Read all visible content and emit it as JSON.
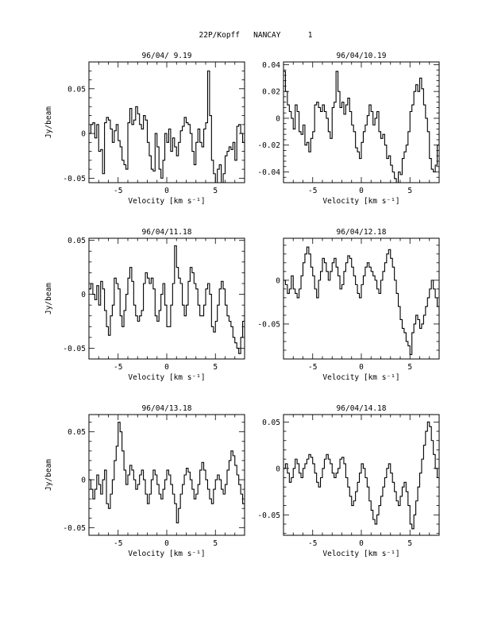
{
  "header": "22P/Kopff   NANCAY      1",
  "chart_data": [
    {
      "type": "line",
      "title": "96/04/ 9.19",
      "xlabel": "Velocity [km s⁻¹]",
      "ylabel": "Jy/beam",
      "xlim": [
        -8,
        8
      ],
      "ylim": [
        -0.055,
        0.08
      ],
      "xticks": [
        -5,
        0,
        5
      ],
      "yticks": [
        -0.05,
        0,
        0.05
      ],
      "ytick_labels": [
        "-0.05",
        "0",
        "0.05"
      ],
      "x_step": 0.2,
      "values": [
        0.0,
        0.01,
        0.012,
        -0.005,
        0.01,
        -0.02,
        -0.018,
        -0.045,
        0.012,
        0.018,
        0.015,
        0.005,
        -0.01,
        0.003,
        0.01,
        -0.008,
        -0.015,
        -0.03,
        -0.035,
        -0.04,
        0.012,
        0.028,
        0.01,
        0.015,
        0.03,
        0.022,
        0.01,
        0.005,
        0.02,
        0.015,
        -0.01,
        -0.025,
        -0.04,
        -0.042,
        0.0,
        -0.015,
        -0.04,
        -0.05,
        -0.03,
        0.0,
        -0.01,
        0.005,
        -0.02,
        -0.005,
        -0.015,
        -0.025,
        -0.01,
        0.003,
        0.008,
        0.018,
        0.012,
        0.01,
        0.0,
        -0.02,
        -0.035,
        -0.01,
        0.005,
        -0.01,
        -0.015,
        0.005,
        0.012,
        0.07,
        0.02,
        -0.03,
        -0.045,
        -0.058,
        -0.04,
        -0.035,
        -0.055,
        -0.045,
        -0.025,
        -0.02,
        -0.015,
        -0.018,
        -0.01,
        -0.03,
        0.008,
        0.01,
        0.0,
        -0.01,
        -0.005,
        -0.025,
        -0.02,
        0.0,
        0.012,
        0.005,
        0.0,
        -0.01,
        -0.015,
        -0.03,
        -0.03,
        -0.02,
        -0.01,
        -0.015,
        0.005,
        0.01,
        0.015,
        0.01,
        0.005,
        0.025,
        0.018,
        0.008,
        0.012,
        0.02,
        0.01,
        0.005,
        -0.01,
        0.0,
        0.005,
        0.02,
        0.015,
        -0.02,
        -0.025,
        -0.015,
        -0.005,
        0.015,
        -0.01,
        0.003,
        0.005,
        0.012,
        -0.01,
        0.005,
        0.012,
        0.022,
        0.015,
        0.008,
        0.032,
        0.025,
        0.012,
        0.018,
        0.01,
        0.005,
        0.0,
        -0.01,
        -0.015,
        0.008,
        0.01,
        0.0,
        0.005,
        0.012,
        0.02,
        0.003,
        -0.015,
        -0.01,
        0.005,
        0.012,
        0.006,
        0.01,
        -0.01,
        0.015,
        0.018,
        0.012,
        0.008,
        0.0,
        0.003,
        0.01
      ]
    },
    {
      "type": "line",
      "title": "96/04/10.19",
      "xlabel": "Velocity [km s⁻¹]",
      "ylabel": "",
      "xlim": [
        -8,
        8
      ],
      "ylim": [
        -0.048,
        0.042
      ],
      "xticks": [
        -5,
        0,
        5
      ],
      "yticks": [
        -0.04,
        -0.02,
        0,
        0.02,
        0.04
      ],
      "ytick_labels": [
        "-0.04",
        "-0.02",
        "0",
        "0.02",
        "0.04"
      ],
      "x_step": 0.2,
      "values": [
        0.035,
        0.02,
        0.01,
        0.005,
        0.0,
        -0.008,
        0.01,
        0.005,
        -0.01,
        -0.012,
        -0.005,
        -0.02,
        -0.018,
        -0.025,
        -0.015,
        -0.01,
        0.01,
        0.012,
        0.008,
        0.005,
        0.01,
        0.005,
        0.0,
        -0.01,
        -0.015,
        0.008,
        0.012,
        0.035,
        0.02,
        0.008,
        0.012,
        0.003,
        0.01,
        0.015,
        0.005,
        -0.005,
        -0.01,
        -0.022,
        -0.025,
        -0.03,
        -0.018,
        -0.01,
        -0.005,
        0.002,
        0.01,
        0.005,
        -0.005,
        0.0,
        0.005,
        -0.01,
        -0.015,
        -0.012,
        -0.02,
        -0.03,
        -0.028,
        -0.035,
        -0.04,
        -0.045,
        -0.05,
        -0.04,
        -0.042,
        -0.03,
        -0.025,
        -0.02,
        -0.01,
        0.005,
        0.01,
        0.02,
        0.025,
        0.02,
        0.03,
        0.022,
        0.01,
        0.0,
        -0.01,
        -0.03,
        -0.038,
        -0.04,
        -0.035,
        -0.02,
        -0.01,
        0.005,
        0.0,
        -0.008,
        -0.015,
        -0.02,
        -0.025,
        -0.015,
        -0.008,
        -0.012,
        -0.02,
        -0.01,
        0.0,
        0.005,
        0.01,
        0.02,
        0.025,
        0.018,
        0.01,
        0.0,
        -0.005,
        -0.01,
        -0.02,
        -0.015,
        -0.005,
        0.005,
        0.012,
        0.02,
        0.025,
        0.028,
        0.02,
        0.01,
        0.0,
        -0.008,
        -0.012,
        -0.015,
        -0.01,
        -0.02,
        -0.025,
        -0.03,
        -0.025,
        -0.02,
        -0.01,
        0.005,
        0.015,
        0.02,
        0.025,
        0.01,
        0.0,
        -0.01,
        -0.005,
        0.005,
        0.012,
        0.018,
        0.02,
        0.012,
        0.005,
        0.0,
        -0.015,
        -0.025,
        -0.03,
        -0.02,
        -0.01,
        0.0,
        0.01,
        0.02,
        0.022,
        0.01,
        0.005,
        -0.01,
        -0.02,
        -0.008,
        0.0,
        0.005,
        0.0,
        -0.005,
        0.0,
        0.005,
        0.008
      ]
    },
    {
      "type": "line",
      "title": "96/04/11.18",
      "xlabel": "Velocity [km s⁻¹]",
      "ylabel": "Jy/beam",
      "xlim": [
        -8,
        8
      ],
      "ylim": [
        -0.06,
        0.052
      ],
      "xticks": [
        -5,
        0,
        5
      ],
      "yticks": [
        -0.05,
        0,
        0.05
      ],
      "ytick_labels": [
        "-0.05",
        "0",
        "0.05"
      ],
      "x_step": 0.2,
      "values": [
        0.005,
        0.01,
        0.0,
        -0.005,
        0.008,
        -0.01,
        0.012,
        0.005,
        -0.015,
        -0.03,
        -0.038,
        -0.02,
        -0.01,
        0.015,
        0.01,
        0.005,
        -0.02,
        -0.03,
        -0.015,
        0.0,
        0.015,
        0.025,
        0.012,
        -0.01,
        -0.02,
        -0.025,
        -0.02,
        -0.015,
        0.01,
        0.02,
        0.015,
        0.01,
        0.015,
        0.005,
        -0.02,
        -0.025,
        -0.015,
        0.0,
        0.01,
        -0.01,
        -0.03,
        -0.03,
        -0.01,
        0.01,
        0.045,
        0.025,
        0.015,
        0.01,
        -0.01,
        -0.02,
        -0.01,
        0.012,
        0.025,
        0.02,
        0.01,
        0.005,
        -0.01,
        -0.02,
        -0.02,
        -0.01,
        0.005,
        0.01,
        0.0,
        -0.03,
        -0.035,
        -0.025,
        -0.01,
        0.005,
        0.012,
        0.005,
        -0.01,
        -0.02,
        -0.025,
        -0.03,
        -0.04,
        -0.045,
        -0.05,
        -0.055,
        -0.04,
        -0.025,
        -0.015,
        -0.005,
        0.005,
        -0.01,
        -0.02,
        -0.03,
        0.0,
        0.015,
        0.01,
        0.005,
        -0.015,
        -0.02,
        -0.01,
        0.01,
        0.005,
        0.0,
        -0.005,
        -0.01,
        0.01,
        0.015,
        0.02,
        0.01,
        0.0,
        -0.01,
        -0.02,
        -0.03,
        -0.015,
        0.005,
        0.01,
        0.025,
        0.02,
        0.01,
        0.0,
        -0.005,
        -0.015,
        -0.025,
        -0.03,
        -0.02,
        -0.005,
        0.005,
        0.015,
        0.02,
        0.012,
        0.005,
        -0.01,
        -0.015,
        -0.005,
        0.005,
        0.015,
        0.022,
        0.018,
        0.008,
        0.0,
        -0.01,
        -0.015,
        -0.02,
        -0.01,
        0.0,
        0.01,
        0.015,
        0.02,
        0.01,
        0.005,
        -0.01,
        -0.02,
        -0.025,
        -0.015,
        -0.005,
        0.005,
        0.012,
        0.015,
        0.01,
        0.0,
        -0.02,
        -0.03,
        -0.045,
        -0.05,
        -0.048,
        -0.04,
        -0.02
      ]
    },
    {
      "type": "line",
      "title": "96/04/12.18",
      "xlabel": "Velocity [km s⁻¹]",
      "ylabel": "",
      "xlim": [
        -8,
        8
      ],
      "ylim": [
        -0.09,
        0.048
      ],
      "xticks": [
        -5,
        0,
        5
      ],
      "yticks": [
        -0.05,
        0
      ],
      "ytick_labels": [
        "-0.05",
        "0"
      ],
      "x_step": 0.2,
      "values": [
        0.0,
        -0.005,
        -0.015,
        -0.01,
        0.005,
        -0.01,
        -0.015,
        -0.02,
        -0.01,
        0.005,
        0.02,
        0.03,
        0.038,
        0.03,
        0.015,
        0.005,
        -0.01,
        -0.02,
        0.0,
        0.01,
        0.025,
        0.02,
        0.01,
        0.0,
        0.01,
        0.02,
        0.025,
        0.015,
        0.005,
        -0.01,
        -0.005,
        0.01,
        0.02,
        0.028,
        0.025,
        0.015,
        0.005,
        -0.005,
        -0.015,
        -0.02,
        -0.005,
        0.005,
        0.015,
        0.02,
        0.015,
        0.01,
        0.005,
        0.0,
        -0.01,
        -0.015,
        0.0,
        0.01,
        0.02,
        0.03,
        0.035,
        0.025,
        0.015,
        0.0,
        -0.015,
        -0.03,
        -0.045,
        -0.055,
        -0.06,
        -0.07,
        -0.075,
        -0.085,
        -0.06,
        -0.05,
        -0.04,
        -0.045,
        -0.055,
        -0.05,
        -0.04,
        -0.03,
        -0.02,
        -0.01,
        0.0,
        -0.01,
        -0.02,
        -0.03,
        -0.04,
        -0.03,
        -0.02,
        -0.01,
        0.0,
        0.01,
        0.015,
        0.005,
        -0.005,
        -0.015,
        -0.025,
        -0.02,
        -0.01,
        0.0,
        0.01,
        0.015,
        0.012,
        0.005,
        -0.005,
        -0.01,
        0.0,
        0.005,
        0.01,
        0.012,
        0.015,
        0.01,
        0.005,
        0.0,
        -0.005,
        -0.01,
        -0.02,
        -0.02,
        -0.01,
        0.0,
        0.01,
        0.02,
        0.015,
        0.008,
        0.005,
        0.01,
        0.012,
        0.005,
        -0.005,
        -0.015,
        -0.025,
        -0.02,
        -0.01,
        0.0,
        0.01,
        0.015,
        0.02,
        0.015,
        0.01,
        0.005,
        -0.005,
        -0.015,
        -0.025,
        -0.035,
        -0.025,
        -0.015,
        0.0,
        0.01,
        0.02,
        0.025,
        0.015,
        0.005,
        -0.005,
        -0.01,
        -0.015,
        -0.02,
        -0.015,
        -0.005,
        0.005,
        0.01,
        0.015,
        0.01,
        0.005,
        0.0
      ]
    },
    {
      "type": "line",
      "title": "96/04/13.18",
      "xlabel": "Velocity [km s⁻¹]",
      "ylabel": "Jy/beam",
      "xlim": [
        -8,
        8
      ],
      "ylim": [
        -0.058,
        0.068
      ],
      "xticks": [
        -5,
        0,
        5
      ],
      "yticks": [
        -0.05,
        0,
        0.05
      ],
      "ytick_labels": [
        "-0.05",
        "0",
        "0.05"
      ],
      "x_step": 0.2,
      "values": [
        0.0,
        -0.01,
        -0.02,
        -0.01,
        0.005,
        -0.005,
        -0.015,
        0.0,
        0.01,
        -0.025,
        -0.03,
        -0.015,
        0.0,
        0.02,
        0.035,
        0.06,
        0.05,
        0.03,
        0.01,
        -0.005,
        0.005,
        0.015,
        0.01,
        0.0,
        -0.01,
        -0.005,
        0.005,
        0.01,
        0.0,
        -0.015,
        -0.025,
        -0.015,
        0.0,
        0.01,
        0.005,
        -0.005,
        -0.015,
        -0.02,
        -0.01,
        0.0,
        0.01,
        0.005,
        -0.005,
        -0.015,
        -0.025,
        -0.045,
        -0.03,
        -0.015,
        -0.005,
        0.005,
        0.012,
        0.008,
        0.0,
        -0.01,
        -0.02,
        -0.015,
        -0.005,
        0.01,
        0.018,
        0.01,
        0.0,
        -0.01,
        -0.02,
        -0.025,
        -0.01,
        0.0,
        0.005,
        0.0,
        -0.01,
        -0.015,
        -0.005,
        0.01,
        0.02,
        0.03,
        0.025,
        0.015,
        0.005,
        -0.005,
        -0.015,
        -0.025,
        -0.03,
        -0.02,
        -0.01,
        0.0,
        0.01,
        0.015,
        0.01,
        0.0,
        -0.01,
        -0.02,
        -0.01,
        0.0,
        0.015,
        0.03,
        0.05,
        0.055,
        0.04,
        0.025,
        0.01,
        0.0,
        -0.01,
        -0.02,
        -0.015,
        0.0,
        0.01,
        0.02,
        0.025,
        0.015,
        0.005,
        -0.01,
        -0.02,
        -0.03,
        -0.02,
        -0.01,
        0.0,
        0.01,
        0.015,
        0.01,
        0.0,
        -0.01,
        -0.02,
        -0.025,
        -0.015,
        -0.005,
        0.01,
        0.02,
        0.025,
        0.015,
        0.005,
        -0.01,
        -0.02,
        -0.03,
        -0.045,
        -0.035,
        -0.02,
        -0.005,
        0.01,
        0.02,
        0.02,
        0.01,
        0.0,
        -0.01,
        -0.015,
        -0.01,
        0.0,
        0.01,
        0.015,
        0.01,
        0.005,
        0.0,
        -0.005,
        0.0,
        0.01,
        0.015,
        0.01,
        0.005,
        0.0,
        0.005
      ]
    },
    {
      "type": "line",
      "title": "96/04/14.18",
      "xlabel": "Velocity [km s⁻¹]",
      "ylabel": "",
      "xlim": [
        -8,
        8
      ],
      "ylim": [
        -0.072,
        0.058
      ],
      "xticks": [
        -5,
        0,
        5
      ],
      "yticks": [
        -0.05,
        0,
        0.05
      ],
      "ytick_labels": [
        "-0.05",
        "0",
        "0.05"
      ],
      "x_step": 0.2,
      "values": [
        0.0,
        0.005,
        -0.005,
        -0.015,
        -0.01,
        0.0,
        0.01,
        0.005,
        -0.005,
        -0.01,
        0.0,
        0.005,
        0.01,
        0.015,
        0.012,
        0.005,
        -0.005,
        -0.015,
        -0.02,
        -0.01,
        0.0,
        0.01,
        0.015,
        0.01,
        0.005,
        -0.005,
        -0.01,
        -0.005,
        0.0,
        0.01,
        0.012,
        0.005,
        -0.01,
        -0.02,
        -0.03,
        -0.04,
        -0.035,
        -0.025,
        -0.015,
        -0.005,
        0.005,
        0.0,
        -0.01,
        -0.02,
        -0.035,
        -0.045,
        -0.055,
        -0.06,
        -0.05,
        -0.04,
        -0.03,
        -0.02,
        -0.01,
        0.0,
        0.005,
        -0.005,
        -0.015,
        -0.025,
        -0.035,
        -0.04,
        -0.03,
        -0.02,
        -0.015,
        -0.025,
        -0.04,
        -0.06,
        -0.065,
        -0.05,
        -0.035,
        -0.02,
        -0.005,
        0.01,
        0.025,
        0.04,
        0.05,
        0.045,
        0.03,
        0.015,
        0.0,
        -0.01,
        0.0,
        0.01,
        0.02,
        0.025,
        0.018,
        0.01,
        0.0,
        0.005,
        0.015,
        0.02,
        0.012,
        0.005,
        0.0,
        0.01,
        0.02,
        0.03,
        0.025,
        0.015,
        0.005,
        -0.005,
        -0.01,
        0.0,
        0.01,
        0.02,
        0.025,
        0.02,
        0.01,
        0.005,
        0.0,
        -0.005,
        -0.01,
        0.0,
        0.01,
        0.02,
        0.025,
        0.015,
        0.005,
        -0.005,
        -0.015,
        -0.02,
        -0.01,
        0.0,
        0.01,
        0.02,
        0.028,
        0.02,
        0.01,
        0.0,
        -0.01,
        -0.015,
        -0.005,
        0.005,
        0.015,
        0.02,
        0.015,
        0.005,
        -0.005,
        -0.01,
        -0.005,
        0.005,
        0.01,
        0.015,
        0.01,
        0.0,
        -0.01,
        -0.015,
        -0.005,
        0.005,
        0.01,
        0.015,
        0.02,
        0.015,
        0.01,
        0.005,
        0.01,
        0.015,
        0.01
      ]
    }
  ]
}
